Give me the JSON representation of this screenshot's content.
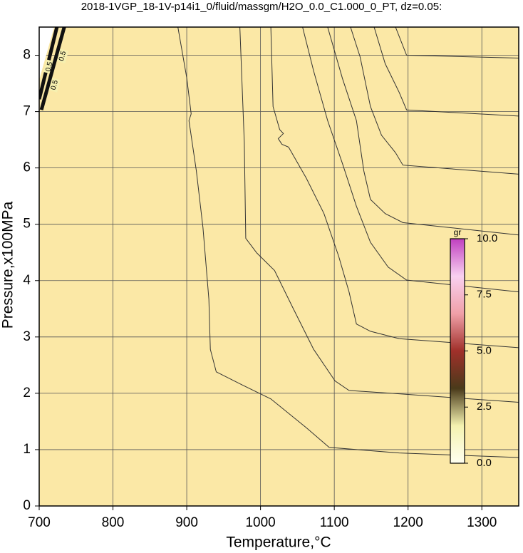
{
  "chart_data": {
    "type": "contour",
    "title": "2018-1VGP_18-1V-p14i1_0/fluid/massgm/H2O_0.0_C1.000_0_PT, dz=0.05:",
    "x_label": "Temperature,°C",
    "y_label": "Pressure,x100MPa",
    "xlim": [
      700,
      1350
    ],
    "ylim": [
      0,
      8.5
    ],
    "xticks": [
      700,
      800,
      900,
      1000,
      1100,
      1200,
      1300
    ],
    "yticks": [
      0,
      1,
      2,
      3,
      4,
      5,
      6,
      7,
      8
    ],
    "grid": true,
    "fill_color": "#fbe8a6",
    "line_color": "#333333",
    "contours": [
      {
        "x": [
          888,
          900,
          906,
          903,
          913,
          922,
          930,
          932,
          940,
          975,
          1014,
          1062,
          1093,
          1188,
          1350
        ],
        "y": [
          8.5,
          7.6,
          6.96,
          6.84,
          5.95,
          4.94,
          3.67,
          2.78,
          2.38,
          2.15,
          1.9,
          1.39,
          1.04,
          0.94,
          0.86
        ]
      },
      {
        "x": [
          972,
          978,
          980,
          995,
          1019,
          1043,
          1072,
          1101,
          1120,
          1188,
          1350
        ],
        "y": [
          8.5,
          6.46,
          4.75,
          4.49,
          4.18,
          3.54,
          2.78,
          2.22,
          2.05,
          1.99,
          1.84
        ]
      },
      {
        "x": [
          1014,
          1017,
          1026,
          1031,
          1024,
          1029,
          1038,
          1062,
          1086,
          1106,
          1120,
          1130,
          1149,
          1188,
          1350
        ],
        "y": [
          8.5,
          7.09,
          6.68,
          6.61,
          6.52,
          6.42,
          6.37,
          5.82,
          5.19,
          4.43,
          3.8,
          3.23,
          3.1,
          2.97,
          2.81
        ]
      },
      {
        "x": [
          1057,
          1072,
          1091,
          1111,
          1130,
          1149,
          1173,
          1198,
          1350
        ],
        "y": [
          8.5,
          7.72,
          6.84,
          6.08,
          5.32,
          4.68,
          4.24,
          4.01,
          3.8
        ]
      },
      {
        "x": [
          1091,
          1111,
          1130,
          1140,
          1149,
          1169,
          1193,
          1350
        ],
        "y": [
          8.5,
          7.59,
          6.84,
          5.95,
          5.44,
          5.19,
          5.03,
          4.81
        ]
      },
      {
        "x": [
          1122,
          1135,
          1149,
          1164,
          1183,
          1193,
          1350
        ],
        "y": [
          8.5,
          7.97,
          7.09,
          6.58,
          6.27,
          6.05,
          5.89
        ]
      },
      {
        "x": [
          1154,
          1169,
          1188,
          1198,
          1350
        ],
        "y": [
          8.5,
          7.85,
          7.34,
          7.03,
          6.92
        ]
      },
      {
        "x": [
          1183,
          1198,
          1350
        ],
        "y": [
          8.5,
          8.0,
          7.95
        ]
      }
    ],
    "thick_contours": [
      {
        "level": 0.5,
        "x": [
          700,
          724
        ],
        "y": [
          7.22,
          8.5
        ]
      },
      {
        "level": 0.5,
        "x": [
          703,
          734
        ],
        "y": [
          7.03,
          8.5
        ]
      }
    ],
    "colorbar": {
      "label": "gr",
      "lim": [
        0,
        10
      ],
      "ticks": [
        {
          "value": 0,
          "label": "0.0"
        },
        {
          "value": 2.5,
          "label": "2.5"
        },
        {
          "value": 5,
          "label": "5.0"
        },
        {
          "value": 7.5,
          "label": "7.5"
        },
        {
          "value": 10,
          "label": "10.0"
        }
      ],
      "colors": [
        "#fffff0",
        "#f4f2b0",
        "#4a3a1a",
        "#a0302a",
        "#f0a0a8",
        "#f8d0f0",
        "#c040c0"
      ]
    }
  }
}
